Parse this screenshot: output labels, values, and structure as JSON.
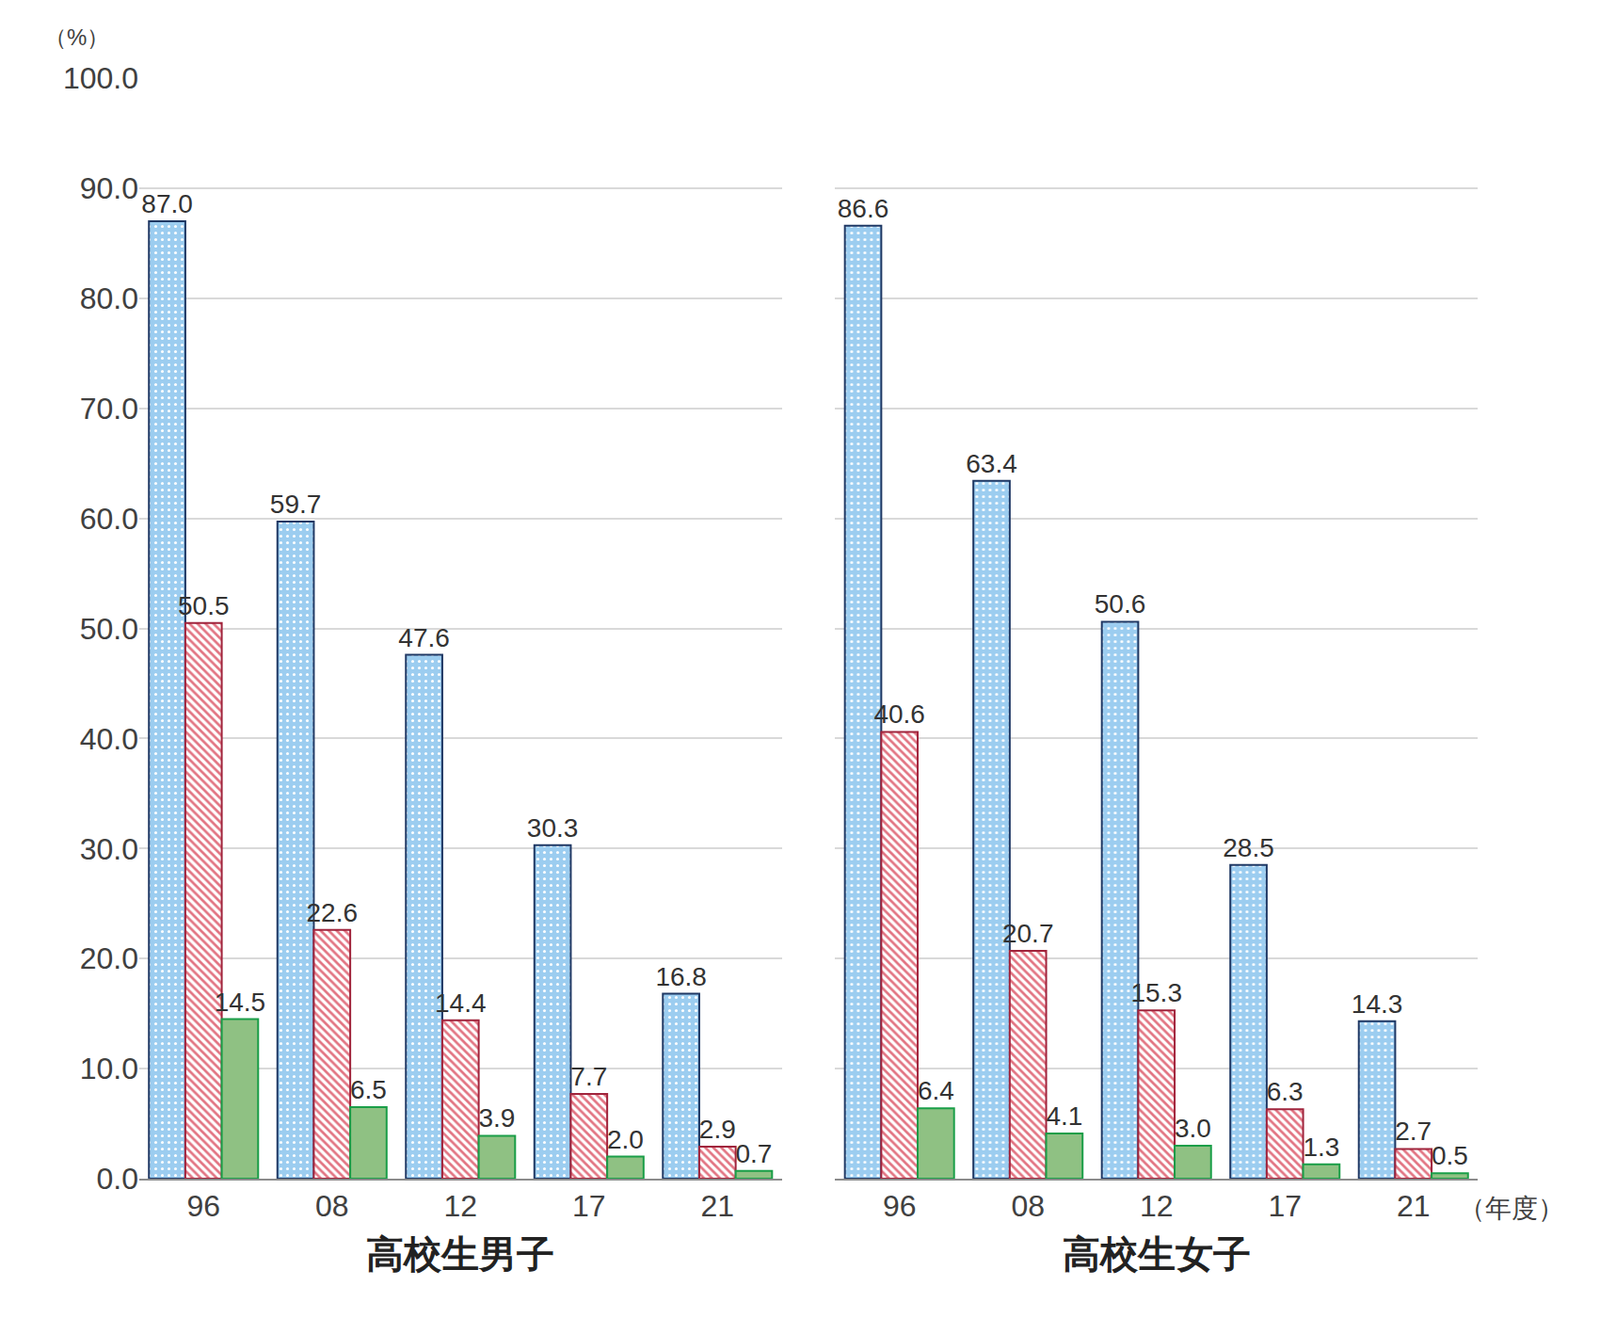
{
  "chart_data": [
    {
      "type": "bar",
      "x_label": "高校生男子",
      "y_label": "（%）",
      "categories": [
        "96",
        "08",
        "12",
        "17",
        "21"
      ],
      "series": [
        {
          "color": "#9ccdf0",
          "values": [
            87.0,
            59.7,
            47.6,
            30.3,
            16.8
          ],
          "value_labels": [
            "87.0",
            "59.7",
            "47.6",
            "30.3",
            "16.8"
          ]
        },
        {
          "color": "#e27482",
          "values": [
            50.5,
            22.6,
            14.4,
            7.7,
            2.9
          ],
          "value_labels": [
            "50.5",
            "22.6",
            "14.4",
            "7.7",
            "2.9"
          ]
        },
        {
          "color": "#8fc183",
          "values": [
            14.5,
            6.5,
            3.9,
            2.0,
            0.7
          ],
          "value_labels": [
            "14.5",
            "6.5",
            "3.9",
            "2.0",
            "0.7"
          ]
        }
      ],
      "ylim": [
        0,
        100
      ],
      "yticks": [
        {
          "value": 0,
          "label": "0.0"
        },
        {
          "value": 10,
          "label": "10.0"
        },
        {
          "value": 20,
          "label": "20.0"
        },
        {
          "value": 30,
          "label": "30.0"
        },
        {
          "value": 40,
          "label": "40.0"
        },
        {
          "value": 50,
          "label": "50.0"
        },
        {
          "value": 60,
          "label": "60.0"
        },
        {
          "value": 70,
          "label": "70.0"
        },
        {
          "value": 80,
          "label": "80.0"
        },
        {
          "value": 90,
          "label": "90.0"
        },
        {
          "value": 100,
          "label": "100.0"
        }
      ],
      "grid": true,
      "data_labels": true
    },
    {
      "type": "bar",
      "x_label": "高校生女子",
      "annotations": [
        {
          "text": "（年度）"
        }
      ],
      "categories": [
        "96",
        "08",
        "12",
        "17",
        "21"
      ],
      "series": [
        {
          "color": "#9ccdf0",
          "values": [
            86.6,
            63.4,
            50.6,
            28.5,
            14.3
          ],
          "value_labels": [
            "86.6",
            "63.4",
            "50.6",
            "28.5",
            "14.3"
          ]
        },
        {
          "color": "#e27482",
          "values": [
            40.6,
            20.7,
            15.3,
            6.3,
            2.7
          ],
          "value_labels": [
            "40.6",
            "20.7",
            "15.3",
            "6.3",
            "2.7"
          ]
        },
        {
          "color": "#8fc183",
          "values": [
            6.4,
            4.1,
            3.0,
            1.3,
            0.5
          ],
          "value_labels": [
            "6.4",
            "4.1",
            "3.0",
            "1.3",
            "0.5"
          ]
        }
      ],
      "ylim": [
        0,
        100
      ],
      "yticks": [
        {
          "value": 0,
          "label": "0.0"
        },
        {
          "value": 10,
          "label": "10.0"
        },
        {
          "value": 20,
          "label": "20.0"
        },
        {
          "value": 30,
          "label": "30.0"
        },
        {
          "value": 40,
          "label": "40.0"
        },
        {
          "value": 50,
          "label": "50.0"
        },
        {
          "value": 60,
          "label": "60.0"
        },
        {
          "value": 70,
          "label": "70.0"
        },
        {
          "value": 80,
          "label": "80.0"
        },
        {
          "value": 90,
          "label": "90.0"
        },
        {
          "value": 100,
          "label": "100.0"
        }
      ],
      "grid": true,
      "tick_labels": "x",
      "data_labels": true
    }
  ]
}
